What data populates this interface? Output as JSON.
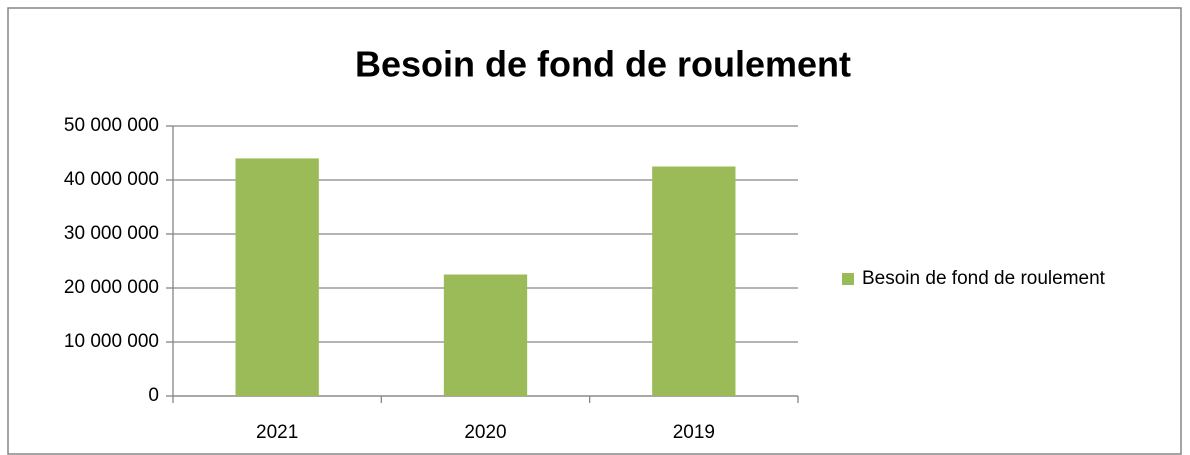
{
  "chart_data": {
    "type": "bar",
    "title": "Besoin de fond de roulement",
    "categories": [
      "2021",
      "2020",
      "2019"
    ],
    "series": [
      {
        "name": "Besoin de fond de roulement",
        "color": "#9bbb59",
        "values": [
          44000000,
          22500000,
          42500000
        ]
      }
    ],
    "ylim": [
      0,
      50000000
    ],
    "yticks": [
      0,
      {
        "value": 10000000,
        "label": "10 000 000"
      },
      {
        "value": 20000000,
        "label": "20 000 000"
      },
      {
        "value": 30000000,
        "label": "30 000 000"
      },
      {
        "value": 40000000,
        "label": "40 000 000"
      },
      {
        "value": 50000000,
        "label": "50 000 000"
      }
    ],
    "grid": true,
    "legend": "right"
  }
}
